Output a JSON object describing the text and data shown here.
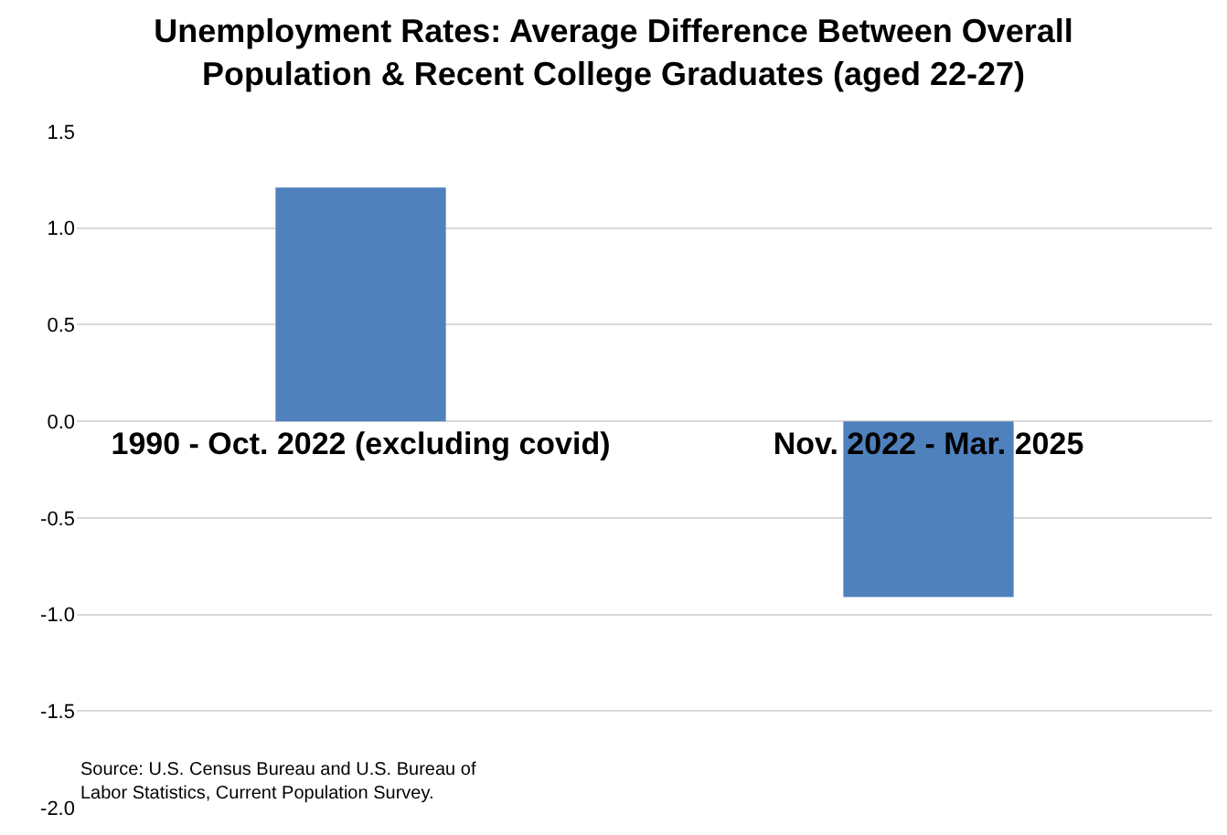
{
  "chart_data": {
    "type": "bar",
    "title": "Unemployment Rates: Average Difference Between Overall\nPopulation & Recent College Graduates (aged 22-27)",
    "categories": [
      "1990 - Oct. 2022 (excluding covid)",
      "Nov. 2022 - Mar. 2025"
    ],
    "values": [
      1.21,
      -0.91
    ],
    "color": "#4f81bd",
    "ylim": [
      -2.0,
      1.5
    ],
    "yticks": [
      {
        "value": -2.0,
        "label": "-2.0"
      },
      -1.5,
      {
        "value": -1.0,
        "label": "-1.0"
      },
      -0.5,
      {
        "value": 0.0,
        "label": "0.0"
      },
      0.5,
      {
        "value": 1.0,
        "label": "1.0"
      },
      1.5
    ],
    "grid": "y",
    "annotations": [
      "Source: U.S. Census Bureau and U.S. Bureau of\nLabor Statistics, Current Population Survey."
    ]
  }
}
